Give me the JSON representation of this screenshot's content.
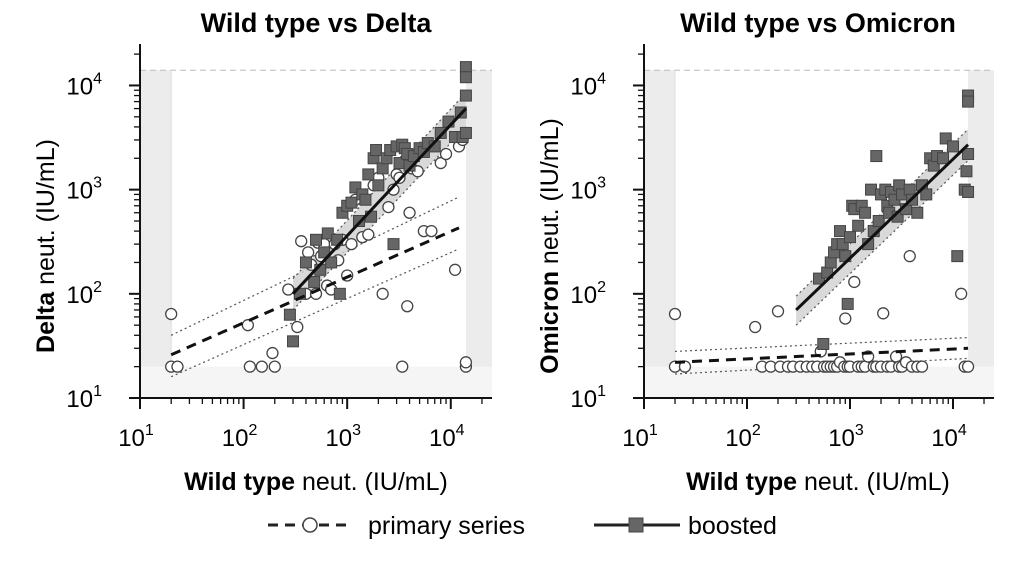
{
  "legend": {
    "primary_label": "primary series",
    "boosted_label": "boosted"
  },
  "colors": {
    "primary_fill": "#ffffff",
    "boosted_fill": "#666666",
    "marker_edge": "#444444",
    "ci_band": "#d0d0d0",
    "lod_band": "#ececec"
  },
  "chart_data": [
    {
      "type": "scatter",
      "title": "Wild type vs Delta",
      "xlabel_bold": "Wild type",
      "xlabel_rest": " neut. (IU/mL)",
      "ylabel_bold": "Delta",
      "ylabel_rest": " neut. (IU/mL)",
      "x_scale": "log",
      "y_scale": "log",
      "xlim": [
        10,
        25000
      ],
      "ylim": [
        10,
        25000
      ],
      "x_ticks": [
        {
          "value": 10,
          "base": "10",
          "exp": "1"
        },
        {
          "value": 100,
          "base": "10",
          "exp": "2"
        },
        {
          "value": 1000,
          "base": "10",
          "exp": "3"
        },
        {
          "value": 10000,
          "base": "10",
          "exp": "4"
        }
      ],
      "y_ticks": [
        {
          "value": 10,
          "base": "10",
          "exp": "1"
        },
        {
          "value": 100,
          "base": "10",
          "exp": "2"
        },
        {
          "value": 1000,
          "base": "10",
          "exp": "3"
        },
        {
          "value": 10000,
          "base": "10",
          "exp": "4"
        }
      ],
      "limits": {
        "x_lower": 20,
        "x_upper": 14000,
        "y_lower": 20,
        "y_upper": 14000
      },
      "series": [
        {
          "name": "primary series",
          "marker": "circle",
          "fit": {
            "x": [
              20,
              12000
            ],
            "y": [
              26,
              430
            ],
            "ci_lower": [
              16,
              270
            ],
            "ci_upper": [
              40,
              850
            ]
          },
          "points": [
            [
              20,
              20
            ],
            [
              20,
              64
            ],
            [
              23,
              20
            ],
            [
              110,
              50
            ],
            [
              115,
              20
            ],
            [
              150,
              20
            ],
            [
              190,
              27
            ],
            [
              200,
              20
            ],
            [
              270,
              110
            ],
            [
              330,
              48
            ],
            [
              360,
              320
            ],
            [
              400,
              100
            ],
            [
              420,
              250
            ],
            [
              450,
              190
            ],
            [
              500,
              100
            ],
            [
              520,
              310
            ],
            [
              560,
              230
            ],
            [
              600,
              300
            ],
            [
              640,
              120
            ],
            [
              700,
              110
            ],
            [
              760,
              300
            ],
            [
              820,
              210
            ],
            [
              900,
              330
            ],
            [
              1000,
              150
            ],
            [
              1100,
              300
            ],
            [
              1200,
              800
            ],
            [
              1400,
              350
            ],
            [
              1600,
              370
            ],
            [
              1800,
              1100
            ],
            [
              2000,
              1300
            ],
            [
              2200,
              100
            ],
            [
              2500,
              680
            ],
            [
              2800,
              1000
            ],
            [
              3000,
              1400
            ],
            [
              3200,
              1300
            ],
            [
              3400,
              20
            ],
            [
              3600,
              1900
            ],
            [
              3800,
              76
            ],
            [
              4000,
              600
            ],
            [
              4200,
              1600
            ],
            [
              4800,
              1500
            ],
            [
              5500,
              400
            ],
            [
              6500,
              400
            ],
            [
              8000,
              1800
            ],
            [
              9000,
              2200
            ],
            [
              11000,
              170
            ],
            [
              12000,
              2600
            ],
            [
              13000,
              3000
            ],
            [
              14000,
              20
            ],
            [
              14000,
              22
            ]
          ]
        },
        {
          "name": "boosted",
          "marker": "square",
          "fit": {
            "x": [
              300,
              14000
            ],
            "y": [
              100,
              6000
            ],
            "ci_lower": [
              70,
              4000
            ],
            "ci_upper": [
              140,
              8500
            ]
          },
          "points": [
            [
              280,
              63
            ],
            [
              300,
              35
            ],
            [
              350,
              100
            ],
            [
              400,
              200
            ],
            [
              480,
              130
            ],
            [
              500,
              330
            ],
            [
              550,
              170
            ],
            [
              600,
              250
            ],
            [
              650,
              380
            ],
            [
              700,
              200
            ],
            [
              800,
              330
            ],
            [
              850,
              100
            ],
            [
              900,
              600
            ],
            [
              1000,
              700
            ],
            [
              1100,
              750
            ],
            [
              1200,
              1050
            ],
            [
              1300,
              500
            ],
            [
              1400,
              900
            ],
            [
              1500,
              800
            ],
            [
              1600,
              1400
            ],
            [
              1700,
              550
            ],
            [
              1800,
              2000
            ],
            [
              1900,
              2400
            ],
            [
              2000,
              1100
            ],
            [
              2200,
              1600
            ],
            [
              2400,
              2000
            ],
            [
              2600,
              2400
            ],
            [
              2800,
              300
            ],
            [
              3000,
              2600
            ],
            [
              3200,
              1800
            ],
            [
              3400,
              2700
            ],
            [
              3600,
              2500
            ],
            [
              3800,
              2200
            ],
            [
              4000,
              1700
            ],
            [
              4400,
              2100
            ],
            [
              5000,
              2500
            ],
            [
              5500,
              2300
            ],
            [
              6000,
              2800
            ],
            [
              7000,
              2600
            ],
            [
              8000,
              3500
            ],
            [
              9500,
              4500
            ],
            [
              11000,
              3200
            ],
            [
              12500,
              5500
            ],
            [
              13000,
              3200
            ],
            [
              14000,
              15000
            ],
            [
              14000,
              12000
            ],
            [
              14000,
              3500
            ],
            [
              14000,
              8000
            ]
          ]
        }
      ]
    },
    {
      "type": "scatter",
      "title": "Wild type vs Omicron",
      "xlabel_bold": "Wild type",
      "xlabel_rest": " neut. (IU/mL)",
      "ylabel_bold": "Omicron",
      "ylabel_rest": " neut. (IU/mL)",
      "x_scale": "log",
      "y_scale": "log",
      "xlim": [
        10,
        25000
      ],
      "ylim": [
        10,
        25000
      ],
      "x_ticks": [
        {
          "value": 10,
          "base": "10",
          "exp": "1"
        },
        {
          "value": 100,
          "base": "10",
          "exp": "2"
        },
        {
          "value": 1000,
          "base": "10",
          "exp": "3"
        },
        {
          "value": 10000,
          "base": "10",
          "exp": "4"
        }
      ],
      "y_ticks": [
        {
          "value": 10,
          "base": "10",
          "exp": "1"
        },
        {
          "value": 100,
          "base": "10",
          "exp": "2"
        },
        {
          "value": 1000,
          "base": "10",
          "exp": "3"
        },
        {
          "value": 10000,
          "base": "10",
          "exp": "4"
        }
      ],
      "limits": {
        "x_lower": 20,
        "x_upper": 14000,
        "y_lower": 20,
        "y_upper": 14000
      },
      "series": [
        {
          "name": "primary series",
          "marker": "circle",
          "fit": {
            "x": [
              20,
              14000
            ],
            "y": [
              22,
              30
            ],
            "ci_lower": [
              17,
              24
            ],
            "ci_upper": [
              28,
              38
            ]
          },
          "points": [
            [
              20,
              20
            ],
            [
              20,
              64
            ],
            [
              25,
              20
            ],
            [
              120,
              48
            ],
            [
              140,
              20
            ],
            [
              170,
              20
            ],
            [
              200,
              68
            ],
            [
              210,
              20
            ],
            [
              250,
              20
            ],
            [
              280,
              20
            ],
            [
              330,
              20
            ],
            [
              380,
              20
            ],
            [
              430,
              20
            ],
            [
              480,
              20
            ],
            [
              520,
              28
            ],
            [
              560,
              20
            ],
            [
              600,
              20
            ],
            [
              650,
              20
            ],
            [
              700,
              20
            ],
            [
              750,
              20
            ],
            [
              800,
              22
            ],
            [
              880,
              20
            ],
            [
              900,
              58
            ],
            [
              950,
              20
            ],
            [
              1000,
              20
            ],
            [
              1100,
              130
            ],
            [
              1200,
              20
            ],
            [
              1300,
              20
            ],
            [
              1400,
              20
            ],
            [
              1500,
              25
            ],
            [
              1700,
              20
            ],
            [
              1800,
              20
            ],
            [
              2000,
              20
            ],
            [
              2100,
              65
            ],
            [
              2300,
              20
            ],
            [
              2500,
              20
            ],
            [
              2800,
              25
            ],
            [
              3000,
              20
            ],
            [
              3200,
              20
            ],
            [
              3500,
              22
            ],
            [
              3800,
              230
            ],
            [
              4000,
              20
            ],
            [
              4500,
              20
            ],
            [
              5000,
              20
            ],
            [
              12000,
              100
            ],
            [
              13000,
              20
            ],
            [
              14000,
              20
            ]
          ]
        },
        {
          "name": "boosted",
          "marker": "square",
          "fit": {
            "x": [
              300,
              14000
            ],
            "y": [
              70,
              2700
            ],
            "ci_lower": [
              50,
              1900
            ],
            "ci_upper": [
              95,
              3800
            ]
          },
          "points": [
            [
              500,
              140
            ],
            [
              550,
              33
            ],
            [
              600,
              160
            ],
            [
              650,
              200
            ],
            [
              700,
              250
            ],
            [
              750,
              300
            ],
            [
              800,
              400
            ],
            [
              850,
              300
            ],
            [
              900,
              230
            ],
            [
              950,
              80
            ],
            [
              1000,
              350
            ],
            [
              1050,
              700
            ],
            [
              1100,
              650
            ],
            [
              1200,
              450
            ],
            [
              1300,
              700
            ],
            [
              1400,
              600
            ],
            [
              1500,
              300
            ],
            [
              1600,
              1000
            ],
            [
              1700,
              400
            ],
            [
              1800,
              2100
            ],
            [
              1900,
              500
            ],
            [
              2000,
              900
            ],
            [
              2200,
              1000
            ],
            [
              2300,
              700
            ],
            [
              2400,
              600
            ],
            [
              2500,
              950
            ],
            [
              2700,
              800
            ],
            [
              2900,
              550
            ],
            [
              3000,
              1100
            ],
            [
              3200,
              900
            ],
            [
              3500,
              650
            ],
            [
              3800,
              1000
            ],
            [
              4000,
              800
            ],
            [
              4500,
              600
            ],
            [
              5000,
              1100
            ],
            [
              5500,
              900
            ],
            [
              6000,
              2000
            ],
            [
              6500,
              1700
            ],
            [
              7000,
              2100
            ],
            [
              8000,
              2000
            ],
            [
              8500,
              3100
            ],
            [
              10000,
              2600
            ],
            [
              11000,
              230
            ],
            [
              13000,
              1000
            ],
            [
              13500,
              1500
            ],
            [
              14000,
              8000
            ],
            [
              14000,
              7000
            ],
            [
              14000,
              2200
            ],
            [
              14000,
              950
            ]
          ]
        }
      ]
    }
  ]
}
